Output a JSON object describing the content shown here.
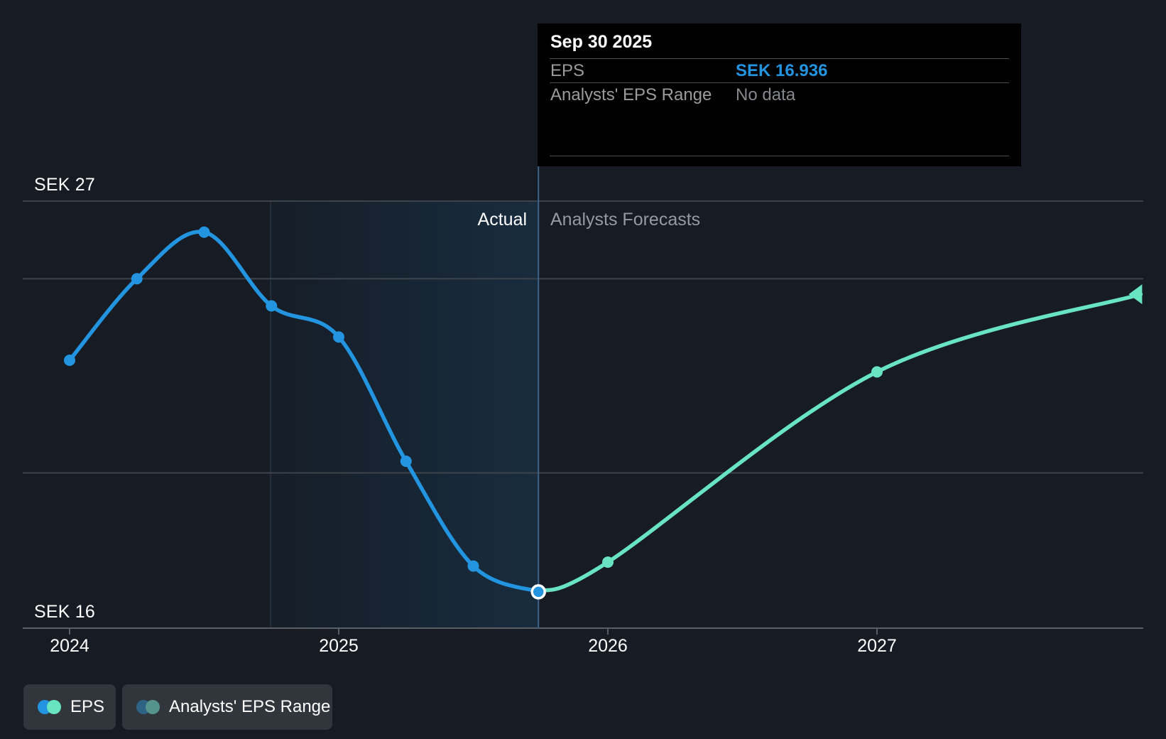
{
  "colors": {
    "background": "#161b24",
    "gridline": "#3d434b",
    "axis": "#5a5f66",
    "eps_actual": "#2394df",
    "eps_forecast": "#68e4c2",
    "divider_line": "#3c638a",
    "band_tint": "rgba(35,148,223,0.13)",
    "band_edge": "rgba(137,176,214,0.16)",
    "legend_range_blue": "#2e6386",
    "legend_range_teal": "#55948c",
    "tooltip_bg": "#000000",
    "tooltip_accent": "#2394df"
  },
  "tooltip": {
    "title": "Sep 30 2025",
    "rows": [
      {
        "label": "EPS",
        "value": "SEK 16.936",
        "style": "accent"
      },
      {
        "label": "Analysts' EPS Range",
        "value": "No data",
        "style": "muted"
      }
    ]
  },
  "chart": {
    "y_top_label": "SEK 27",
    "y_bottom_label": "SEK 16",
    "actual_label": "Actual",
    "forecast_label": "Analysts Forecasts"
  },
  "legend": {
    "items": [
      {
        "label": "EPS"
      },
      {
        "label": "Analysts' EPS Range"
      }
    ]
  },
  "chart_data": {
    "type": "line",
    "title": "EPS actual vs analysts forecasts",
    "x_axis": {
      "ticks": [
        "2024",
        "2025",
        "2026",
        "2027"
      ],
      "min": 2023.83,
      "max": 2028.07
    },
    "y_axis": {
      "top_label": "SEK 27",
      "bottom_label": "SEK 16",
      "max": 27,
      "min": 16,
      "unit": "SEK",
      "gridlines": [
        27,
        25,
        20
      ]
    },
    "divider_x": 2025.742,
    "actual_band": {
      "start_x": 2024.747,
      "end_x": 2025.742
    },
    "series": [
      {
        "name": "EPS (Actual)",
        "color": "#2394df",
        "points": [
          {
            "x": 2024.0,
            "value": 22.9
          },
          {
            "x": 2024.25,
            "value": 25.0
          },
          {
            "x": 2024.5,
            "value": 26.2
          },
          {
            "x": 2024.75,
            "value": 24.3
          },
          {
            "x": 2025.0,
            "value": 23.5
          },
          {
            "x": 2025.25,
            "value": 20.3
          },
          {
            "x": 2025.5,
            "value": 17.6
          },
          {
            "x": 2025.742,
            "value": 16.936,
            "selected": true,
            "date": "Sep 30 2025"
          }
        ]
      },
      {
        "name": "EPS (Analysts Forecast)",
        "color": "#68e4c2",
        "points": [
          {
            "x": 2025.742,
            "value": 16.936,
            "dot": false
          },
          {
            "x": 2026.0,
            "value": 17.7,
            "dot": true
          },
          {
            "x": 2027.0,
            "value": 22.6,
            "dot": true
          },
          {
            "x": 2027.98,
            "value": 24.6,
            "dot": false,
            "arrow_end": true
          }
        ]
      }
    ],
    "legend_position": "bottom-left",
    "grid": "horizontal-only"
  }
}
